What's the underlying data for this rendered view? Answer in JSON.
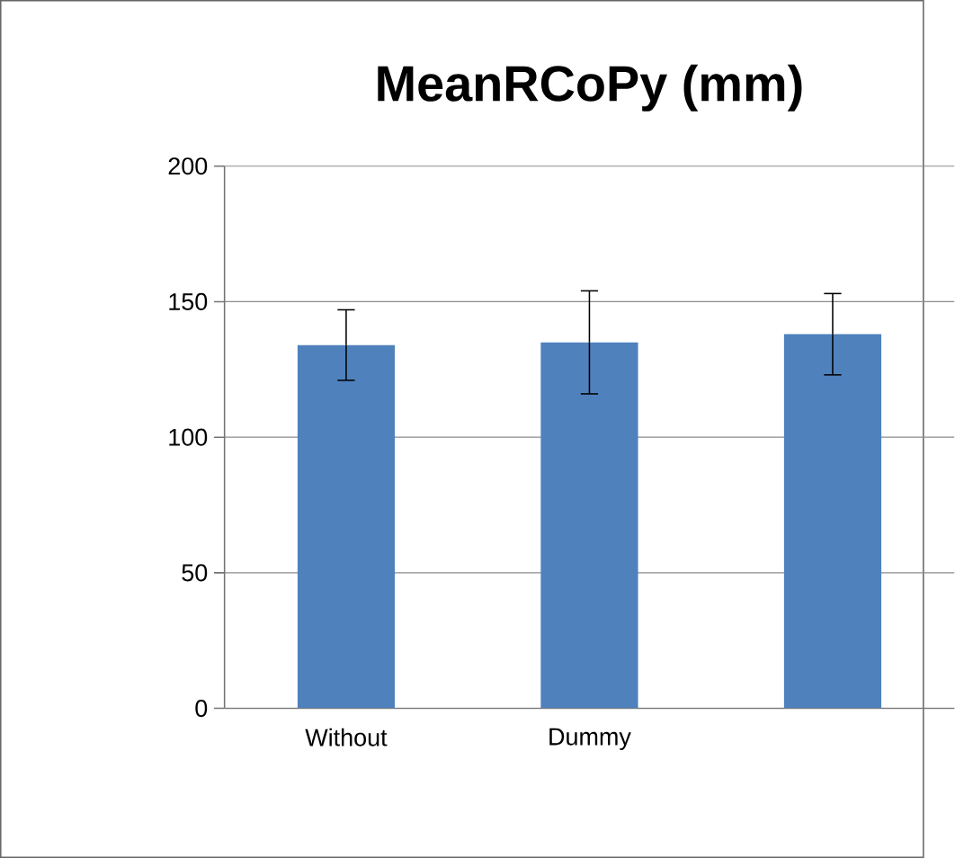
{
  "chart_data": {
    "type": "bar",
    "title": "MeanRCoPy (mm)",
    "categories": [
      "Without",
      "Dummy",
      null
    ],
    "values": [
      134,
      135,
      138
    ],
    "errors": [
      13,
      19,
      15
    ],
    "color": "#4f81bd",
    "ylim": [
      0,
      200
    ],
    "yticks": [
      0,
      50,
      100,
      150,
      200
    ],
    "grid": "y"
  }
}
